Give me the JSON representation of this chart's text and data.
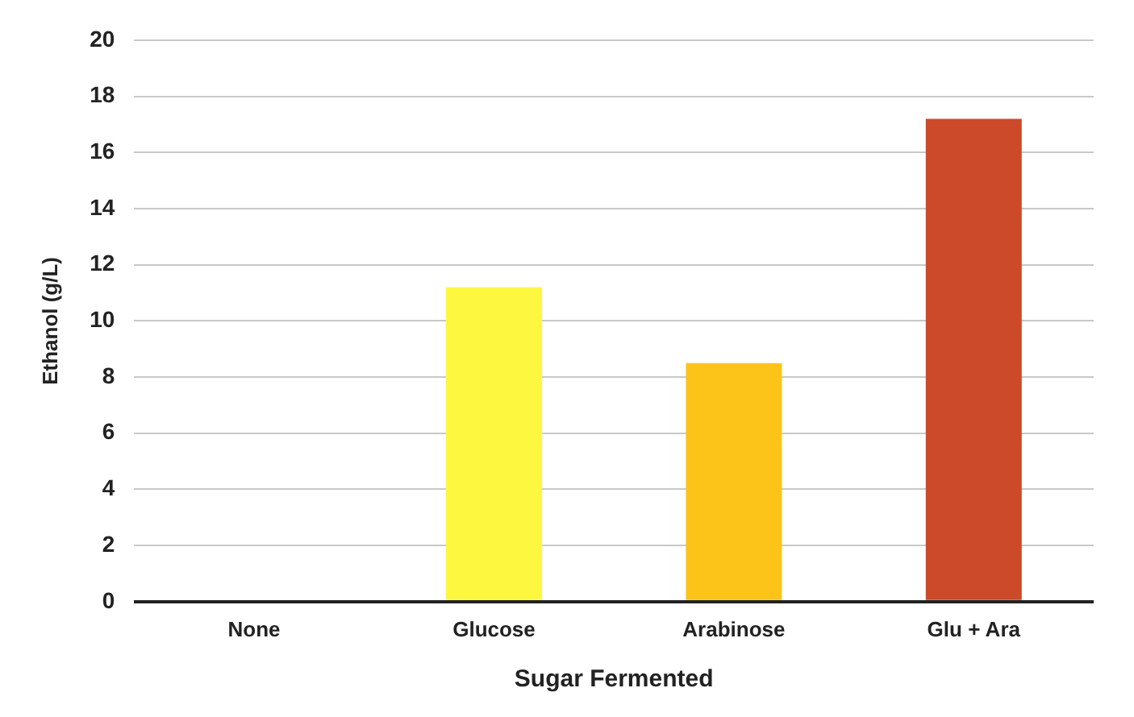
{
  "chart_data": {
    "type": "bar",
    "xlabel": "Sugar Fermented",
    "ylabel": "Ethanol (g/L)",
    "categories": [
      "None",
      "Glucose",
      "Arabinose",
      "Glu + Ara"
    ],
    "values": [
      0,
      11.2,
      8.5,
      17.2
    ],
    "colors": [
      "#fdf83f",
      "#fdf83f",
      "#fcc419",
      "#cc4a2a"
    ],
    "ylim": [
      0,
      20
    ],
    "yticks": [
      0,
      2,
      4,
      6,
      8,
      10,
      12,
      14,
      16,
      18,
      20
    ],
    "grid": "y",
    "legend": false
  }
}
